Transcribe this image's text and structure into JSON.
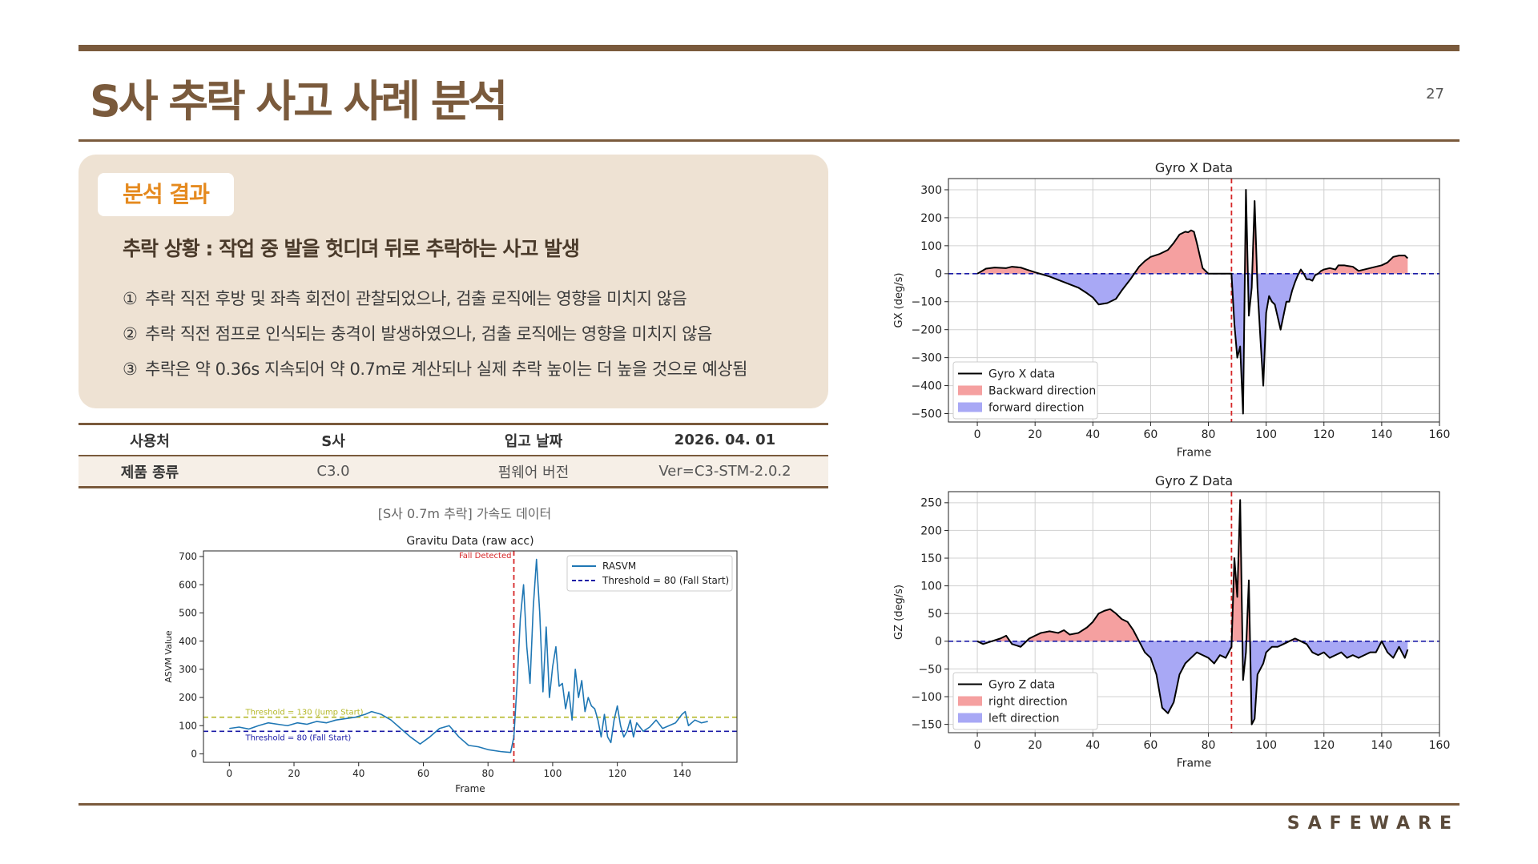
{
  "page": {
    "title": "S사 추락 사고 사례 분석",
    "page_number": "27",
    "logo": "SAFEWARE"
  },
  "analysis": {
    "tag": "분석 결과",
    "heading": "추락 상황 : 작업 중 발을 헛디뎌 뒤로 추락하는 사고 발생",
    "points": [
      {
        "num": "①",
        "text": "추락 직전 후방 및 좌측 회전이 관찰되었으나, 검출 로직에는 영향을 미치지 않음"
      },
      {
        "num": "②",
        "text": "추락 직전 점프로 인식되는 충격이 발생하였으나, 검출 로직에는 영향을 미치지 않음"
      },
      {
        "num": "③",
        "text": "추락은 약 0.36s 지속되어 약 0.7m로 계산되나 실제 추락 높이는 더 높을 것으로 예상됨"
      }
    ]
  },
  "specs": {
    "rows": [
      [
        "사용처",
        "S사",
        "입고 날짜",
        "2026. 04. 01"
      ],
      [
        "제품 종류",
        "C3.0",
        "펌웨어 버전",
        "Ver=C3-STM-2.0.2"
      ]
    ]
  },
  "caption": "[S사 0.7m 추락] 가속도 데이터",
  "colors": {
    "brand": "#7a5a3c",
    "accent": "#e58a1f",
    "panel": "#eee2d3"
  },
  "chart_data": [
    {
      "id": "acc",
      "type": "line",
      "title": "Gravitu Data (raw acc)",
      "xlabel": "Frame",
      "ylabel": "ASVM Value",
      "xlim": [
        -8,
        157
      ],
      "ylim": [
        -30,
        720
      ],
      "xticks": [
        0,
        20,
        40,
        60,
        80,
        100,
        120,
        140
      ],
      "yticks": [
        0,
        100,
        200,
        300,
        400,
        500,
        600,
        700
      ],
      "grid": false,
      "legend_position": "top-right",
      "series": [
        {
          "name": "RASVM",
          "color": "#1f77b4",
          "x": [
            0,
            3,
            6,
            9,
            12,
            15,
            18,
            21,
            24,
            27,
            30,
            33,
            36,
            39,
            42,
            44,
            47,
            50,
            53,
            56,
            59,
            62,
            65,
            68,
            71,
            74,
            77,
            80,
            84,
            87,
            88,
            89,
            90,
            91,
            92,
            93,
            94,
            95,
            96,
            97,
            98,
            99,
            100,
            101,
            102,
            103,
            104,
            105,
            106,
            107,
            108,
            109,
            110,
            111,
            112,
            113,
            114,
            115,
            116,
            117,
            118,
            119,
            120,
            121,
            122,
            123,
            124,
            125,
            126,
            128,
            130,
            132,
            134,
            136,
            138,
            140,
            141,
            142,
            144,
            146,
            148
          ],
          "y": [
            90,
            95,
            88,
            100,
            110,
            105,
            100,
            110,
            105,
            115,
            110,
            120,
            125,
            130,
            140,
            150,
            140,
            120,
            90,
            60,
            35,
            60,
            90,
            100,
            60,
            30,
            25,
            15,
            8,
            5,
            60,
            250,
            480,
            600,
            380,
            250,
            520,
            690,
            500,
            220,
            450,
            200,
            310,
            380,
            240,
            250,
            160,
            220,
            120,
            300,
            200,
            260,
            150,
            200,
            170,
            160,
            120,
            60,
            140,
            60,
            40,
            120,
            170,
            100,
            60,
            80,
            120,
            60,
            110,
            80,
            95,
            120,
            90,
            100,
            110,
            140,
            150,
            100,
            120,
            110,
            115
          ]
        },
        {
          "name": "Threshold = 80 (Fall Start)",
          "color": "#1a1aa6",
          "style": "dashed",
          "y_const": 80
        }
      ],
      "reference_lines": [
        {
          "label": "Threshold = 130 (Jump Start)",
          "y": 130,
          "color": "#b5b82a",
          "style": "dashed"
        },
        {
          "label": "Threshold = 80 (Fall Start)",
          "y": 80,
          "color": "#1a1aa6",
          "style": "dashed"
        },
        {
          "label": "Fall Detected",
          "x": 88,
          "color": "#d62728",
          "style": "dashed"
        }
      ]
    },
    {
      "id": "gx",
      "type": "area",
      "title": "Gyro X Data",
      "xlabel": "Frame",
      "ylabel": "GX (deg/s)",
      "xlim": [
        -10,
        160
      ],
      "ylim": [
        -530,
        340
      ],
      "xticks": [
        0,
        20,
        40,
        60,
        80,
        100,
        120,
        140,
        160
      ],
      "yticks": [
        -500,
        -400,
        -300,
        -200,
        -100,
        0,
        100,
        200,
        300
      ],
      "grid": true,
      "legend_position": "bottom-left",
      "series": [
        {
          "name": "Gyro X data",
          "color": "#000000",
          "x": [
            0,
            3,
            6,
            10,
            12,
            15,
            17,
            20,
            25,
            30,
            35,
            38,
            40,
            42,
            45,
            48,
            50,
            53,
            56,
            58,
            60,
            63,
            66,
            68,
            70,
            72,
            73,
            74,
            75,
            76,
            78,
            80,
            82,
            85,
            88,
            89,
            90,
            91,
            92,
            93,
            94,
            95,
            96,
            97,
            98,
            99,
            100,
            101,
            102,
            103,
            105,
            107,
            108,
            109,
            110,
            111,
            112,
            113,
            114,
            115,
            116,
            117,
            118,
            119,
            120,
            122,
            124,
            125,
            127,
            128,
            130,
            132,
            134,
            136,
            138,
            140,
            142,
            144,
            146,
            148,
            149
          ],
          "y": [
            0,
            18,
            22,
            20,
            25,
            22,
            15,
            5,
            -10,
            -30,
            -50,
            -70,
            -85,
            -110,
            -105,
            -90,
            -60,
            -20,
            25,
            45,
            60,
            70,
            85,
            110,
            140,
            150,
            148,
            155,
            150,
            110,
            20,
            0,
            0,
            0,
            0,
            -180,
            -300,
            -260,
            -500,
            300,
            -150,
            -50,
            260,
            -50,
            -230,
            -400,
            -140,
            -80,
            -100,
            -110,
            -200,
            -100,
            -100,
            -60,
            -30,
            -5,
            15,
            0,
            -20,
            -20,
            -25,
            -5,
            0,
            10,
            15,
            20,
            15,
            30,
            30,
            28,
            25,
            10,
            15,
            20,
            25,
            30,
            40,
            60,
            65,
            65,
            55
          ]
        },
        {
          "name": "Backward direction",
          "color": "#f5a0a0",
          "style": "fill-positive"
        },
        {
          "name": "forward direction",
          "color": "#a8a8f5",
          "style": "fill-negative"
        }
      ],
      "reference_lines": [
        {
          "label": "",
          "y": 0,
          "color": "#1a1aa6",
          "style": "dashed"
        },
        {
          "label": "",
          "x": 88,
          "color": "#d62728",
          "style": "dashed"
        }
      ]
    },
    {
      "id": "gz",
      "type": "area",
      "title": "Gyro Z Data",
      "xlabel": "Frame",
      "ylabel": "GZ (deg/s)",
      "xlim": [
        -10,
        160
      ],
      "ylim": [
        -165,
        270
      ],
      "xticks": [
        0,
        20,
        40,
        60,
        80,
        100,
        120,
        140,
        160
      ],
      "yticks": [
        -150,
        -100,
        -50,
        0,
        50,
        100,
        150,
        200,
        250
      ],
      "grid": true,
      "legend_position": "bottom-left",
      "series": [
        {
          "name": "Gyro Z data",
          "color": "#000000",
          "x": [
            0,
            2,
            5,
            8,
            10,
            12,
            15,
            18,
            20,
            22,
            25,
            28,
            30,
            32,
            35,
            38,
            40,
            42,
            44,
            46,
            48,
            50,
            52,
            54,
            56,
            58,
            60,
            62,
            64,
            66,
            68,
            70,
            72,
            74,
            76,
            78,
            80,
            82,
            84,
            86,
            88,
            89,
            90,
            91,
            92,
            93,
            94,
            95,
            96,
            97,
            98,
            99,
            100,
            101,
            102,
            104,
            106,
            108,
            110,
            112,
            114,
            116,
            118,
            120,
            122,
            124,
            126,
            128,
            130,
            132,
            134,
            136,
            138,
            140,
            142,
            144,
            146,
            148,
            149
          ],
          "y": [
            0,
            -5,
            0,
            5,
            10,
            -5,
            -10,
            5,
            10,
            15,
            18,
            15,
            20,
            12,
            15,
            25,
            35,
            50,
            55,
            58,
            50,
            40,
            35,
            20,
            0,
            -20,
            -30,
            -60,
            -120,
            -130,
            -110,
            -60,
            -40,
            -30,
            -20,
            -25,
            -30,
            -40,
            -25,
            -30,
            -10,
            150,
            80,
            255,
            -70,
            -20,
            110,
            -150,
            -140,
            -60,
            -50,
            -40,
            -20,
            -15,
            -10,
            -10,
            -5,
            0,
            5,
            0,
            -5,
            -20,
            -25,
            -20,
            -30,
            -25,
            -20,
            -30,
            -25,
            -30,
            -25,
            -20,
            -20,
            0,
            -20,
            -30,
            -10,
            -30,
            -15
          ]
        },
        {
          "name": "right direction",
          "color": "#f5a0a0",
          "style": "fill-positive"
        },
        {
          "name": "left direction",
          "color": "#a8a8f5",
          "style": "fill-negative"
        }
      ],
      "reference_lines": [
        {
          "label": "",
          "y": 0,
          "color": "#1a1aa6",
          "style": "dashed"
        },
        {
          "label": "",
          "x": 88,
          "color": "#d62728",
          "style": "dashed"
        }
      ]
    }
  ]
}
